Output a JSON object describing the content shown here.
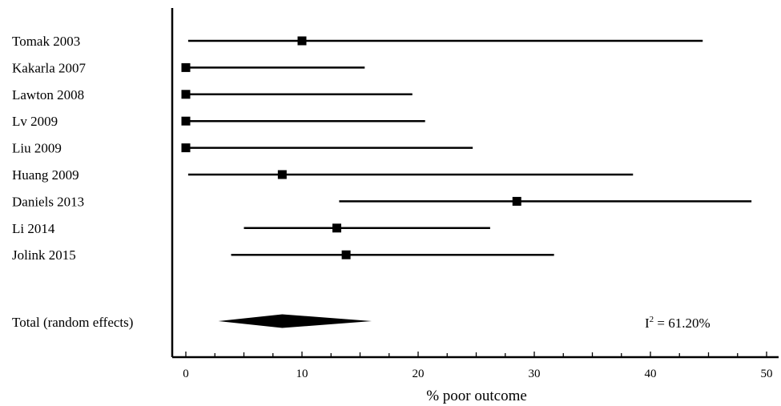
{
  "chart_data": {
    "type": "forest",
    "xlabel": "% poor outcome",
    "xlim": [
      0,
      50
    ],
    "xticks": [
      0,
      10,
      20,
      30,
      40,
      50
    ],
    "studies": [
      {
        "label": "Tomak 2003",
        "estimate": 10.0,
        "ci": [
          0.2,
          44.5
        ]
      },
      {
        "label": "Kakarla 2007",
        "estimate": 0.0,
        "ci": [
          0.0,
          15.4
        ]
      },
      {
        "label": "Lawton 2008",
        "estimate": 0.0,
        "ci": [
          0.0,
          19.5
        ]
      },
      {
        "label": "Lv 2009",
        "estimate": 0.0,
        "ci": [
          0.0,
          20.6
        ]
      },
      {
        "label": "Liu 2009",
        "estimate": 0.0,
        "ci": [
          0.0,
          24.7
        ]
      },
      {
        "label": "Huang 2009",
        "estimate": 8.3,
        "ci": [
          0.2,
          38.5
        ]
      },
      {
        "label": "Daniels 2013",
        "estimate": 28.5,
        "ci": [
          13.2,
          48.7
        ]
      },
      {
        "label": "Li 2014",
        "estimate": 13.0,
        "ci": [
          5.0,
          26.2
        ]
      },
      {
        "label": "Jolink 2015",
        "estimate": 13.8,
        "ci": [
          3.9,
          31.7
        ]
      }
    ],
    "total": {
      "label": "Total (random effects)",
      "estimate": 8.3,
      "ci": [
        2.8,
        16.0
      ]
    },
    "heterogeneity": {
      "symbol": "I",
      "exponent": "2",
      "value": " = 61.20%"
    }
  }
}
